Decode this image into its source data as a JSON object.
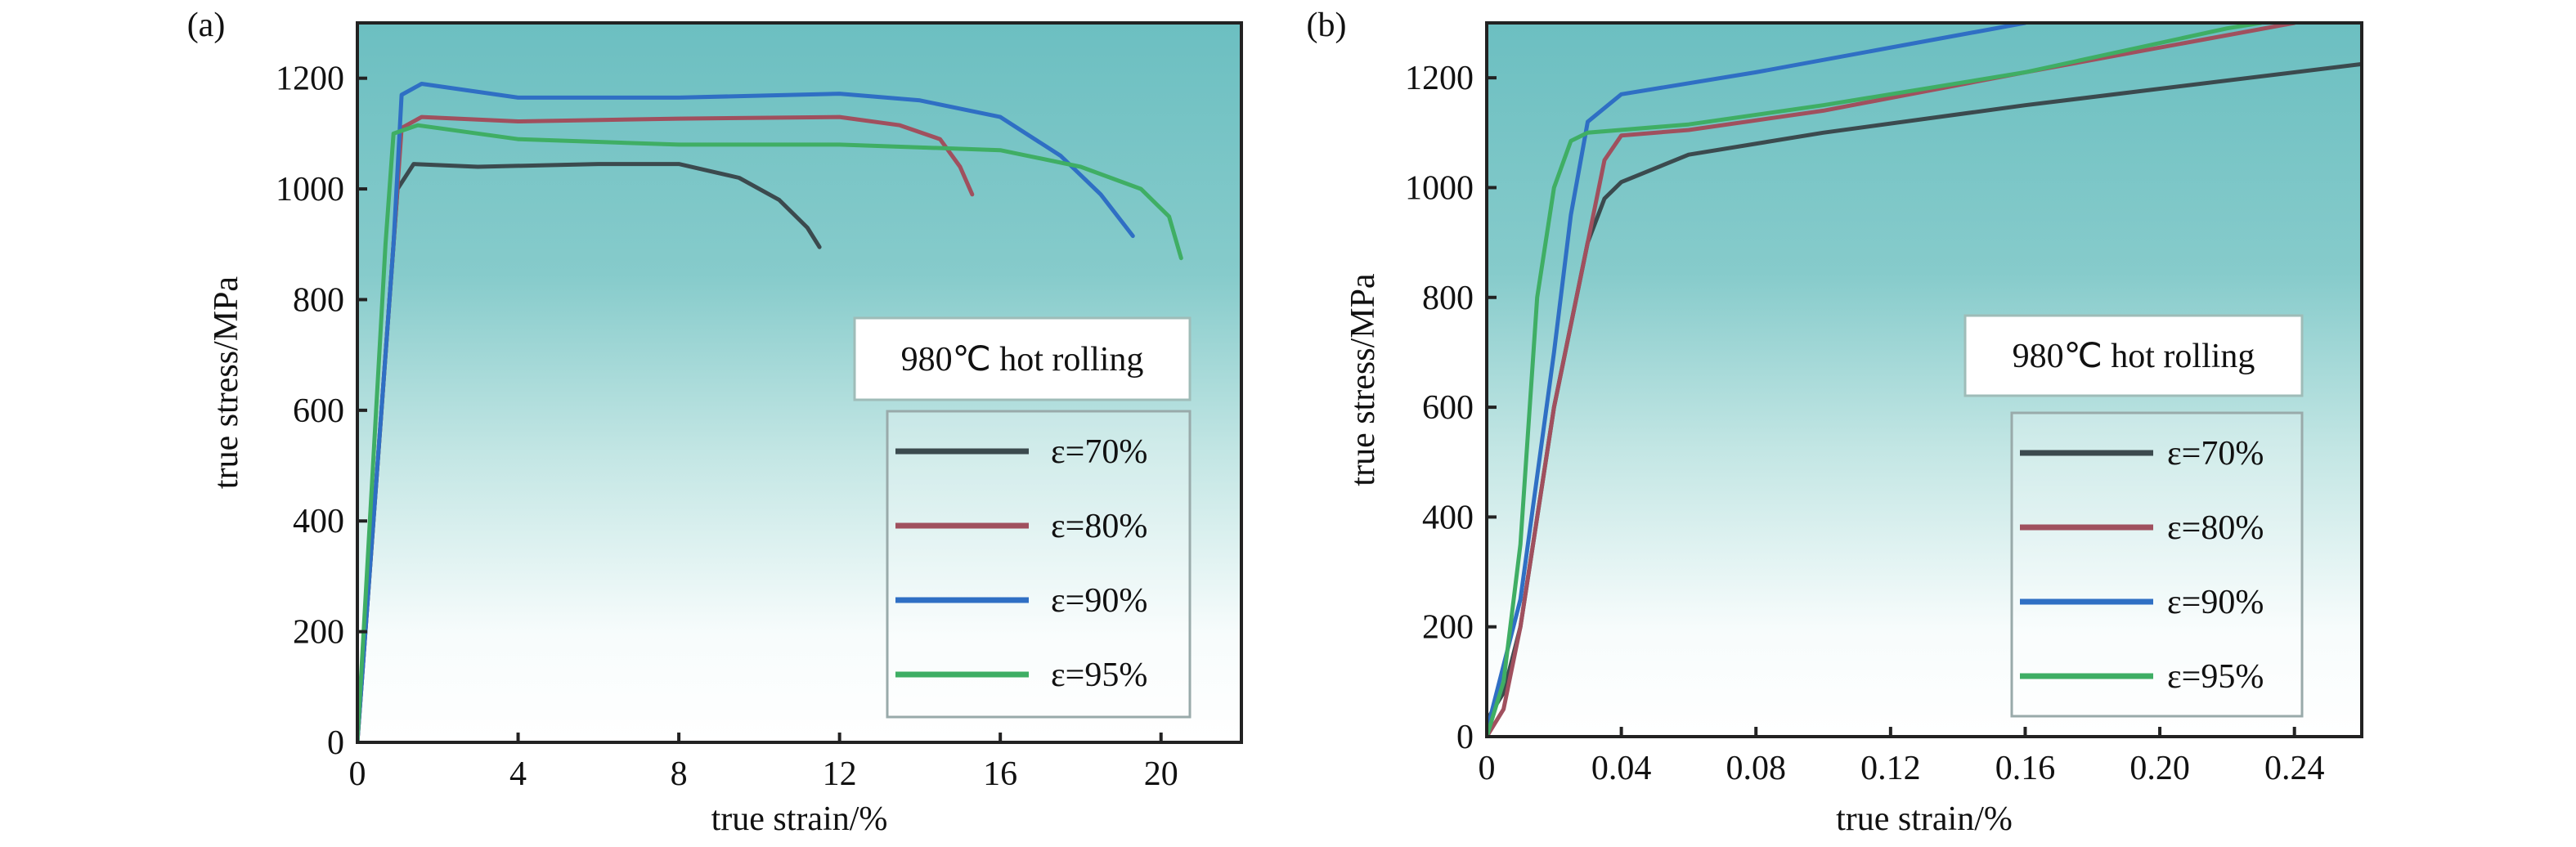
{
  "chart_data": [
    {
      "type": "line",
      "panel_label": "(a)",
      "xlabel": "true strain/%",
      "ylabel": "true stress/MPa",
      "xlim": [
        0,
        22
      ],
      "ylim": [
        0,
        1300
      ],
      "xticks": [
        0,
        4,
        8,
        12,
        16,
        20
      ],
      "xtick_labels": [
        "0",
        "4",
        "8",
        "12",
        "16",
        "20"
      ],
      "yticks": [
        0,
        200,
        400,
        600,
        800,
        1000,
        1200
      ],
      "ytick_labels": [
        "0",
        "200",
        "400",
        "600",
        "800",
        "1000",
        "1200"
      ],
      "grid": false,
      "legend_title": "980℃ hot rolling",
      "legend_placement": "bottom-right",
      "series": [
        {
          "name": "ε=70%",
          "color": "#3b4a4e",
          "points": [
            [
              0,
              0
            ],
            [
              0.6,
              600
            ],
            [
              1.0,
              1000
            ],
            [
              1.4,
              1045
            ],
            [
              3,
              1040
            ],
            [
              6,
              1045
            ],
            [
              8,
              1045
            ],
            [
              9.5,
              1020
            ],
            [
              10.5,
              980
            ],
            [
              11.2,
              930
            ],
            [
              11.5,
              895
            ]
          ]
        },
        {
          "name": "ε=80%",
          "color": "#a0505e",
          "points": [
            [
              0,
              0
            ],
            [
              0.9,
              900
            ],
            [
              1.1,
              1110
            ],
            [
              1.6,
              1130
            ],
            [
              4,
              1122
            ],
            [
              8,
              1127
            ],
            [
              12,
              1130
            ],
            [
              13.5,
              1115
            ],
            [
              14.5,
              1090
            ],
            [
              15,
              1040
            ],
            [
              15.3,
              990
            ]
          ]
        },
        {
          "name": "ε=90%",
          "color": "#2f6fc4",
          "points": [
            [
              0,
              0
            ],
            [
              0.9,
              900
            ],
            [
              1.1,
              1170
            ],
            [
              1.6,
              1190
            ],
            [
              4,
              1165
            ],
            [
              8,
              1165
            ],
            [
              12,
              1172
            ],
            [
              14,
              1160
            ],
            [
              16,
              1130
            ],
            [
              17.5,
              1060
            ],
            [
              18.5,
              990
            ],
            [
              19.3,
              915
            ]
          ]
        },
        {
          "name": "ε=95%",
          "color": "#3fae64",
          "points": [
            [
              0,
              0
            ],
            [
              0.7,
              900
            ],
            [
              0.9,
              1100
            ],
            [
              1.5,
              1115
            ],
            [
              4,
              1090
            ],
            [
              8,
              1080
            ],
            [
              12,
              1080
            ],
            [
              16,
              1070
            ],
            [
              18,
              1040
            ],
            [
              19.5,
              1000
            ],
            [
              20.2,
              950
            ],
            [
              20.5,
              875
            ]
          ]
        }
      ]
    },
    {
      "type": "line",
      "panel_label": "(b)",
      "xlabel": "true strain/%",
      "ylabel": "true stress/MPa",
      "xlim": [
        0,
        0.26
      ],
      "ylim": [
        0,
        1300
      ],
      "xticks": [
        0,
        0.04,
        0.08,
        0.12,
        0.16,
        0.2,
        0.24
      ],
      "xtick_labels": [
        "0",
        "0.04",
        "0.08",
        "0.12",
        "0.16",
        "0.20",
        "0.24"
      ],
      "yticks": [
        0,
        200,
        400,
        600,
        800,
        1000,
        1200
      ],
      "ytick_labels": [
        "0",
        "200",
        "400",
        "600",
        "800",
        "1000",
        "1200"
      ],
      "grid": false,
      "legend_title": "980℃ hot rolling",
      "legend_placement": "bottom-right",
      "series": [
        {
          "name": "ε=70%",
          "color": "#3b4a4e",
          "points": [
            [
              0,
              30
            ],
            [
              0.005,
              80
            ],
            [
              0.01,
              200
            ],
            [
              0.02,
              600
            ],
            [
              0.03,
              900
            ],
            [
              0.035,
              980
            ],
            [
              0.04,
              1010
            ],
            [
              0.06,
              1060
            ],
            [
              0.1,
              1100
            ],
            [
              0.16,
              1150
            ],
            [
              0.26,
              1225
            ]
          ]
        },
        {
          "name": "ε=80%",
          "color": "#a0505e",
          "points": [
            [
              0,
              0
            ],
            [
              0.005,
              50
            ],
            [
              0.01,
              200
            ],
            [
              0.02,
              600
            ],
            [
              0.03,
              900
            ],
            [
              0.035,
              1050
            ],
            [
              0.04,
              1095
            ],
            [
              0.06,
              1105
            ],
            [
              0.1,
              1140
            ],
            [
              0.16,
              1210
            ],
            [
              0.24,
              1300
            ]
          ]
        },
        {
          "name": "ε=90%",
          "color": "#2f6fc4",
          "points": [
            [
              0,
              10
            ],
            [
              0.01,
              250
            ],
            [
              0.02,
              700
            ],
            [
              0.025,
              950
            ],
            [
              0.03,
              1120
            ],
            [
              0.04,
              1170
            ],
            [
              0.08,
              1210
            ],
            [
              0.16,
              1300
            ]
          ]
        },
        {
          "name": "ε=95%",
          "color": "#3fae64",
          "points": [
            [
              0,
              0
            ],
            [
              0.005,
              100
            ],
            [
              0.01,
              350
            ],
            [
              0.015,
              800
            ],
            [
              0.02,
              1000
            ],
            [
              0.025,
              1085
            ],
            [
              0.03,
              1100
            ],
            [
              0.06,
              1115
            ],
            [
              0.1,
              1150
            ],
            [
              0.16,
              1210
            ],
            [
              0.22,
              1290
            ],
            [
              0.23,
              1300
            ]
          ]
        }
      ]
    }
  ]
}
